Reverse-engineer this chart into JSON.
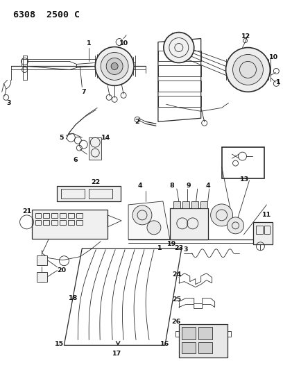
{
  "title_code": "6308  2500 C",
  "background_color": "#ffffff",
  "figsize": [
    4.08,
    5.33
  ],
  "dpi": 100,
  "line_color": "#2a2a2a",
  "label_color": "#111111",
  "label_fontsize": 6.8,
  "title_fontsize": 9.5
}
